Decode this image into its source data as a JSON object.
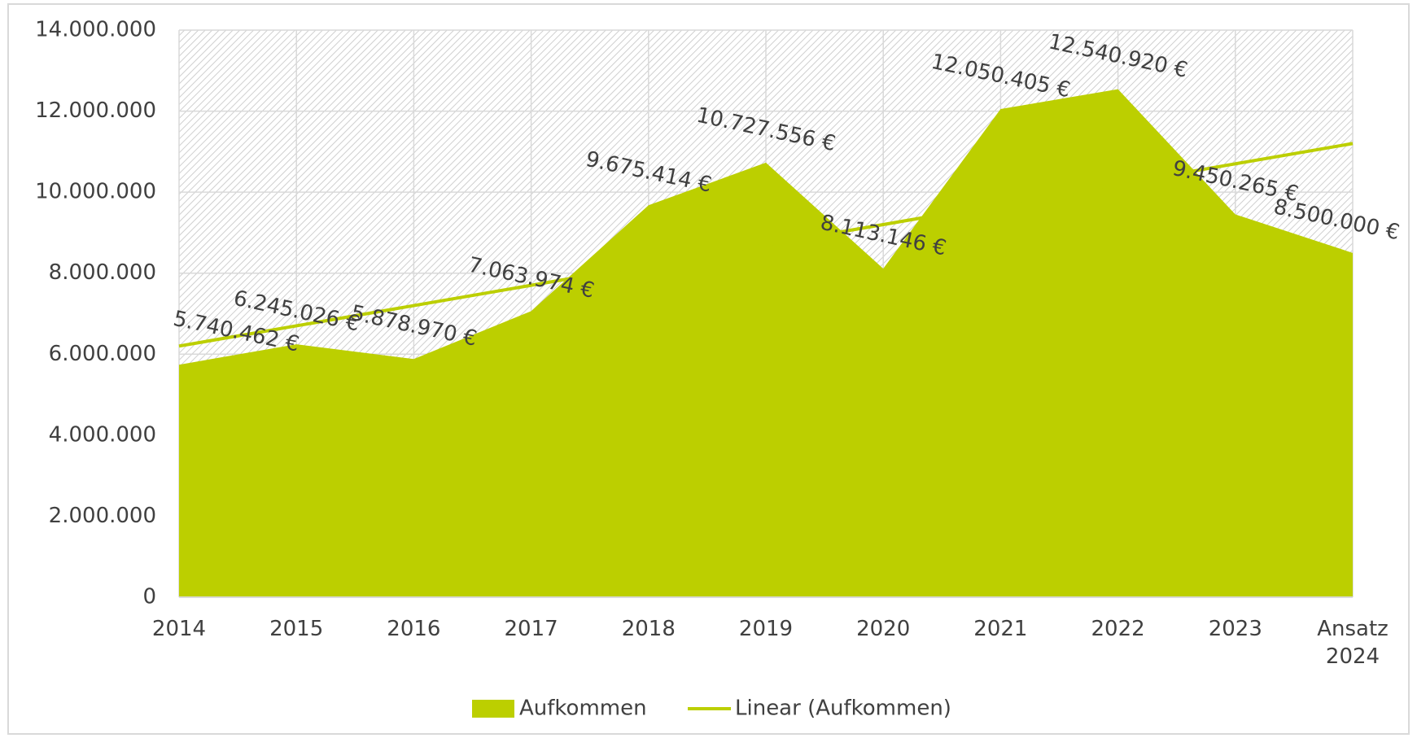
{
  "chart_data": {
    "type": "area",
    "categories": [
      "2014",
      "2015",
      "2016",
      "2017",
      "2018",
      "2019",
      "2020",
      "2021",
      "2022",
      "2023",
      "Ansatz 2024"
    ],
    "series": [
      {
        "name": "Aufkommen",
        "color": "#bccf00",
        "values": [
          5740462,
          6245026,
          5878970,
          7063974,
          9675414,
          10727556,
          8113146,
          12050405,
          12540920,
          9450265,
          8500000
        ],
        "value_labels": [
          "5.740.462 €",
          "6.245.026 €",
          "5.878.970 €",
          "7.063.974 €",
          "9.675.414 €",
          "10.727.556 €",
          "8.113.146 €",
          "12.050.405 €",
          "12.540.920 €",
          "9.450.265 €",
          "8.500.000 €"
        ]
      },
      {
        "name": "Linear (Aufkommen)",
        "color": "#bccf00",
        "type": "line",
        "values": [
          6200000,
          6700000,
          7200000,
          7700000,
          8200000,
          8700000,
          9200000,
          9700000,
          10200000,
          10700000,
          11200000
        ]
      }
    ],
    "ylim": [
      0,
      14000000
    ],
    "yticks": [
      0,
      {
        "value": 2000000,
        "label": "2.000.000"
      },
      {
        "value": 4000000,
        "label": "4.000.000"
      },
      {
        "value": 6000000,
        "label": "6.000.000"
      },
      {
        "value": 8000000,
        "label": "8.000.000"
      },
      {
        "value": 10000000,
        "label": "10.000.000"
      },
      {
        "value": 12000000,
        "label": "12.000.000"
      },
      {
        "value": 14000000,
        "label": "14.000.000"
      }
    ],
    "grid": true,
    "legend": "bottom"
  }
}
